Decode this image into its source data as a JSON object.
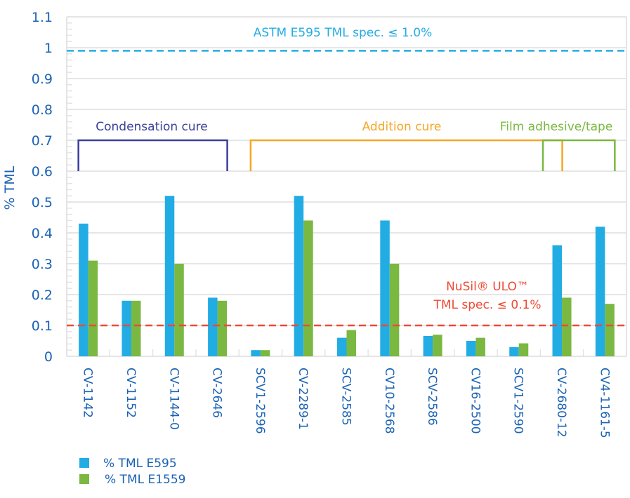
{
  "chart_data": {
    "type": "bar",
    "title": "",
    "xlabel": "",
    "ylabel": "% TML",
    "ylim": [
      0,
      1.1
    ],
    "yticks": [
      "0",
      "0.1",
      "0.2",
      "0.3",
      "0.4",
      "0.5",
      "0.6",
      "0.7",
      "0.8",
      "0.9",
      "1",
      "1.1"
    ],
    "ytick_values": [
      0,
      0.1,
      0.2,
      0.3,
      0.4,
      0.5,
      0.6,
      0.7,
      0.8,
      0.9,
      1.0,
      1.1
    ],
    "grid": true,
    "categories": [
      "CV-1142",
      "CV-1152",
      "CV-1144-0",
      "CV-2646",
      "SCV1-2596",
      "CV-2289-1",
      "SCV-2585",
      "CV10-2568",
      "SCV-2586",
      "CV16-2500",
      "SCV1-2590",
      "CV-2680-12",
      "CV4-1161-5"
    ],
    "series": [
      {
        "name": "% TML E595",
        "color": "#22ace4",
        "values": [
          0.43,
          0.18,
          0.52,
          0.19,
          0.02,
          0.52,
          0.06,
          0.44,
          0.066,
          0.05,
          0.03,
          0.36,
          0.42
        ]
      },
      {
        "name": "% TML E1559",
        "color": "#7ab841",
        "values": [
          0.31,
          0.18,
          0.3,
          0.18,
          0.02,
          0.44,
          0.085,
          0.3,
          0.07,
          0.06,
          0.042,
          0.19,
          0.17
        ]
      }
    ],
    "reference_lines": [
      {
        "label": "ASTM E595 TML spec. ≤ 1.0%",
        "value": 0.99,
        "color": "#22ace4",
        "style": "dashed"
      },
      {
        "label_lines": [
          "NuSil® ULO™",
          "TML spec. ≤ 0.1%"
        ],
        "value": 0.1,
        "color": "#ee4a35",
        "style": "dashed"
      }
    ],
    "groups": [
      {
        "label": "Condensation cure",
        "color": "#3a3f9c",
        "from": "CV-1142",
        "to": "CV-2646",
        "y_top": 0.7,
        "y_bottom": 0.6
      },
      {
        "label": "Addition cure",
        "color": "#f6a623",
        "from": "SCV1-2596",
        "to": "CV-2680-12",
        "y_top": 0.7,
        "y_bottom": 0.6
      },
      {
        "label": "Film adhesive/tape",
        "color": "#7ab841",
        "from": "CV-2680-12",
        "to": "CV4-1161-5",
        "y_top": 0.7,
        "y_bottom": 0.6
      }
    ],
    "legend": {
      "position": "bottom-left",
      "entries": [
        "% TML E595",
        "% TML E1559"
      ]
    }
  }
}
